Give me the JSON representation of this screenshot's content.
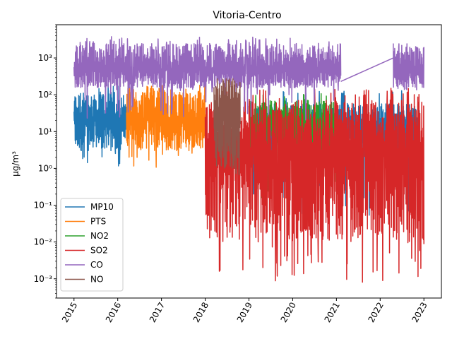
{
  "chart_data": {
    "type": "line",
    "title": "Vitoria-Centro",
    "xlabel": "",
    "ylabel": "μg/m³",
    "yscale": "log",
    "ylim": [
      0.0003,
      8000
    ],
    "xlim": [
      2014.6,
      2023.4
    ],
    "x_ticks": [
      "2015",
      "2016",
      "2017",
      "2018",
      "2019",
      "2020",
      "2021",
      "2022",
      "2023"
    ],
    "y_ticks": [
      "10⁻³",
      "10⁻²",
      "10⁻¹",
      "10⁰",
      "10¹",
      "10²",
      "10³"
    ],
    "legend_position": "lower-left",
    "grid": false,
    "series": [
      {
        "name": "MP10",
        "color": "#1f77b4",
        "segments": [
          {
            "x": [
              2015.0,
              2016.2
            ],
            "upper": 120,
            "lower": 3,
            "center": 20,
            "spike_max": 200,
            "spike_min": 1
          },
          {
            "x": [
              2019.0,
              2022.9
            ],
            "upper": 60,
            "lower": 2,
            "center": 10,
            "spike_max": 130,
            "spike_min": 0.05
          }
        ]
      },
      {
        "name": "PTS",
        "color": "#ff7f0e",
        "segments": [
          {
            "x": [
              2016.2,
              2018.0
            ],
            "upper": 150,
            "lower": 3,
            "center": 20,
            "spike_max": 190,
            "spike_min": 1
          }
        ]
      },
      {
        "name": "NO2",
        "color": "#2ca02c",
        "segments": [
          {
            "x": [
              2019.0,
              2021.0
            ],
            "upper": 70,
            "lower": 1,
            "center": 15,
            "spike_max": 110,
            "spike_min": 0.08
          }
        ]
      },
      {
        "name": "SO2",
        "color": "#d62728",
        "segments": [
          {
            "x": [
              2018.0,
              2023.0
            ],
            "upper": 70,
            "lower": 0.01,
            "center": 3,
            "spike_max": 150,
            "spike_min": 0.0008
          }
        ]
      },
      {
        "name": "CO",
        "color": "#9467bd",
        "segments": [
          {
            "x": [
              2015.0,
              2021.1
            ],
            "upper": 2500,
            "lower": 150,
            "center": 500,
            "spike_max": 3800,
            "spike_min": 20
          },
          {
            "x": [
              2022.3,
              2023.0
            ],
            "upper": 2000,
            "lower": 150,
            "center": 400,
            "spike_max": 2500,
            "spike_min": 130
          }
        ],
        "bridge": [
          [
            2021.1,
            230
          ],
          [
            2022.3,
            1000
          ]
        ]
      },
      {
        "name": "NO",
        "color": "#8c564b",
        "segments": [
          {
            "x": [
              2018.2,
              2018.8
            ],
            "upper": 250,
            "lower": 1,
            "center": 30,
            "spike_max": 280,
            "spike_min": 0.5
          }
        ]
      }
    ]
  }
}
